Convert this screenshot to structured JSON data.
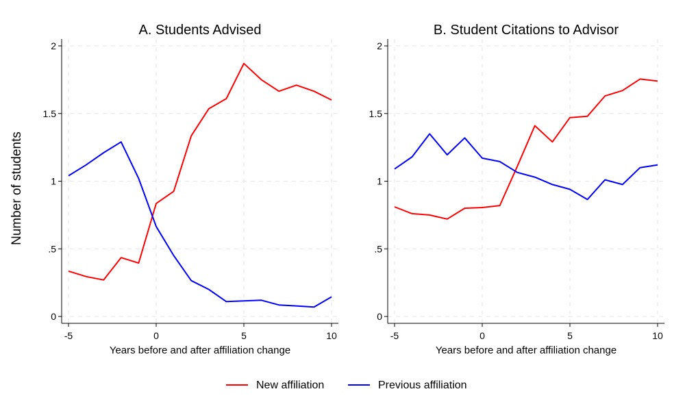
{
  "figure": {
    "ylabel": "Number of students"
  },
  "chart_data": [
    {
      "type": "line",
      "title": "A. Students Advised",
      "xlabel": "Years before and after affiliation change",
      "ylabel": "Number of students",
      "xlim": [
        -5,
        10
      ],
      "ylim": [
        0,
        2
      ],
      "xticks": [
        -5,
        0,
        5,
        10
      ],
      "xtick_labels": [
        "-5",
        "0",
        "5",
        "10"
      ],
      "yticks": [
        0,
        0.5,
        1,
        1.5,
        2
      ],
      "ytick_labels": [
        "0",
        ".5",
        "1",
        "1.5",
        "2"
      ],
      "grid": true,
      "x": [
        -5,
        -4,
        -3,
        -2,
        -1,
        0,
        1,
        2,
        3,
        4,
        5,
        6,
        7,
        8,
        9,
        10
      ],
      "series": [
        {
          "name": "New affiliation",
          "color": "#ff0000",
          "values": [
            0.335,
            0.295,
            0.27,
            0.435,
            0.395,
            0.835,
            0.925,
            1.335,
            1.535,
            1.61,
            1.87,
            1.75,
            1.665,
            1.71,
            1.665,
            1.6
          ]
        },
        {
          "name": "Previous affiliation",
          "color": "#0000ff",
          "values": [
            1.04,
            1.12,
            1.21,
            1.29,
            1.02,
            0.665,
            0.45,
            0.265,
            0.2,
            0.11,
            0.115,
            0.12,
            0.085,
            0.078,
            0.07,
            0.145
          ]
        }
      ]
    },
    {
      "type": "line",
      "title": "B. Student Citations to Advisor",
      "xlabel": "Years before and after affiliation change",
      "ylabel": "Number of students",
      "xlim": [
        -5,
        10
      ],
      "ylim": [
        0,
        2
      ],
      "xticks": [
        -5,
        0,
        5,
        10
      ],
      "xtick_labels": [
        "-5",
        "0",
        "5",
        "10"
      ],
      "yticks": [
        0,
        0.5,
        1,
        1.5,
        2
      ],
      "ytick_labels": [
        "0",
        ".5",
        "1",
        "1.5",
        "2"
      ],
      "grid": true,
      "x": [
        -5,
        -4,
        -3,
        -2,
        -1,
        0,
        1,
        2,
        3,
        4,
        5,
        6,
        7,
        8,
        9,
        10
      ],
      "series": [
        {
          "name": "New affiliation",
          "color": "#ff0000",
          "values": [
            0.81,
            0.76,
            0.75,
            0.72,
            0.8,
            0.805,
            0.82,
            1.11,
            1.41,
            1.29,
            1.47,
            1.48,
            1.63,
            1.67,
            1.755,
            1.74
          ]
        },
        {
          "name": "Previous affiliation",
          "color": "#0000ff",
          "values": [
            1.09,
            1.18,
            1.35,
            1.195,
            1.32,
            1.17,
            1.145,
            1.065,
            1.03,
            0.975,
            0.94,
            0.865,
            1.01,
            0.975,
            1.1,
            1.12
          ]
        }
      ]
    }
  ],
  "legend": {
    "placement": "bottom-center",
    "items": [
      {
        "label": "New affiliation",
        "color": "#ff0000"
      },
      {
        "label": "Previous affiliation",
        "color": "#0000ff"
      }
    ]
  }
}
